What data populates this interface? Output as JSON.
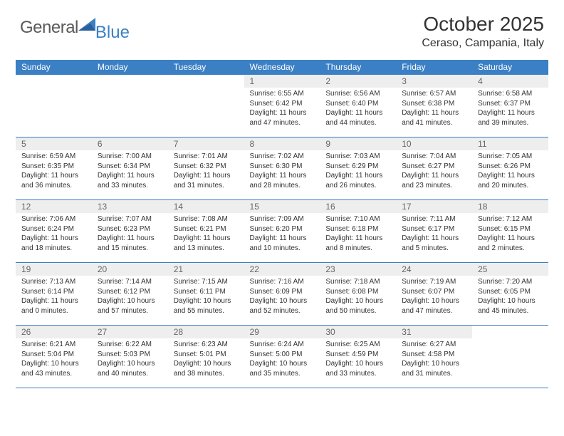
{
  "brand": {
    "word1": "General",
    "word2": "Blue"
  },
  "title": "October 2025",
  "location": "Ceraso, Campania, Italy",
  "colors": {
    "header_bg": "#3b7fc4",
    "header_text": "#ffffff",
    "daynum_bg": "#eeeeee",
    "daynum_text": "#666666",
    "body_text": "#333333",
    "rule": "#3b7fc4",
    "page_bg": "#ffffff",
    "logo_gray": "#5a5a5a",
    "logo_blue": "#3b7fc4"
  },
  "typography": {
    "title_size": 28,
    "location_size": 16,
    "dayname_size": 12,
    "daynum_size": 12,
    "cell_size": 10
  },
  "dayNames": [
    "Sunday",
    "Monday",
    "Tuesday",
    "Wednesday",
    "Thursday",
    "Friday",
    "Saturday"
  ],
  "layout": {
    "columns": 7,
    "rows": 5,
    "leading_blanks": 3
  },
  "days": [
    {
      "n": 1,
      "sunrise": "6:55 AM",
      "sunset": "6:42 PM",
      "daylight": "11 hours and 47 minutes."
    },
    {
      "n": 2,
      "sunrise": "6:56 AM",
      "sunset": "6:40 PM",
      "daylight": "11 hours and 44 minutes."
    },
    {
      "n": 3,
      "sunrise": "6:57 AM",
      "sunset": "6:38 PM",
      "daylight": "11 hours and 41 minutes."
    },
    {
      "n": 4,
      "sunrise": "6:58 AM",
      "sunset": "6:37 PM",
      "daylight": "11 hours and 39 minutes."
    },
    {
      "n": 5,
      "sunrise": "6:59 AM",
      "sunset": "6:35 PM",
      "daylight": "11 hours and 36 minutes."
    },
    {
      "n": 6,
      "sunrise": "7:00 AM",
      "sunset": "6:34 PM",
      "daylight": "11 hours and 33 minutes."
    },
    {
      "n": 7,
      "sunrise": "7:01 AM",
      "sunset": "6:32 PM",
      "daylight": "11 hours and 31 minutes."
    },
    {
      "n": 8,
      "sunrise": "7:02 AM",
      "sunset": "6:30 PM",
      "daylight": "11 hours and 28 minutes."
    },
    {
      "n": 9,
      "sunrise": "7:03 AM",
      "sunset": "6:29 PM",
      "daylight": "11 hours and 26 minutes."
    },
    {
      "n": 10,
      "sunrise": "7:04 AM",
      "sunset": "6:27 PM",
      "daylight": "11 hours and 23 minutes."
    },
    {
      "n": 11,
      "sunrise": "7:05 AM",
      "sunset": "6:26 PM",
      "daylight": "11 hours and 20 minutes."
    },
    {
      "n": 12,
      "sunrise": "7:06 AM",
      "sunset": "6:24 PM",
      "daylight": "11 hours and 18 minutes."
    },
    {
      "n": 13,
      "sunrise": "7:07 AM",
      "sunset": "6:23 PM",
      "daylight": "11 hours and 15 minutes."
    },
    {
      "n": 14,
      "sunrise": "7:08 AM",
      "sunset": "6:21 PM",
      "daylight": "11 hours and 13 minutes."
    },
    {
      "n": 15,
      "sunrise": "7:09 AM",
      "sunset": "6:20 PM",
      "daylight": "11 hours and 10 minutes."
    },
    {
      "n": 16,
      "sunrise": "7:10 AM",
      "sunset": "6:18 PM",
      "daylight": "11 hours and 8 minutes."
    },
    {
      "n": 17,
      "sunrise": "7:11 AM",
      "sunset": "6:17 PM",
      "daylight": "11 hours and 5 minutes."
    },
    {
      "n": 18,
      "sunrise": "7:12 AM",
      "sunset": "6:15 PM",
      "daylight": "11 hours and 2 minutes."
    },
    {
      "n": 19,
      "sunrise": "7:13 AM",
      "sunset": "6:14 PM",
      "daylight": "11 hours and 0 minutes."
    },
    {
      "n": 20,
      "sunrise": "7:14 AM",
      "sunset": "6:12 PM",
      "daylight": "10 hours and 57 minutes."
    },
    {
      "n": 21,
      "sunrise": "7:15 AM",
      "sunset": "6:11 PM",
      "daylight": "10 hours and 55 minutes."
    },
    {
      "n": 22,
      "sunrise": "7:16 AM",
      "sunset": "6:09 PM",
      "daylight": "10 hours and 52 minutes."
    },
    {
      "n": 23,
      "sunrise": "7:18 AM",
      "sunset": "6:08 PM",
      "daylight": "10 hours and 50 minutes."
    },
    {
      "n": 24,
      "sunrise": "7:19 AM",
      "sunset": "6:07 PM",
      "daylight": "10 hours and 47 minutes."
    },
    {
      "n": 25,
      "sunrise": "7:20 AM",
      "sunset": "6:05 PM",
      "daylight": "10 hours and 45 minutes."
    },
    {
      "n": 26,
      "sunrise": "6:21 AM",
      "sunset": "5:04 PM",
      "daylight": "10 hours and 43 minutes."
    },
    {
      "n": 27,
      "sunrise": "6:22 AM",
      "sunset": "5:03 PM",
      "daylight": "10 hours and 40 minutes."
    },
    {
      "n": 28,
      "sunrise": "6:23 AM",
      "sunset": "5:01 PM",
      "daylight": "10 hours and 38 minutes."
    },
    {
      "n": 29,
      "sunrise": "6:24 AM",
      "sunset": "5:00 PM",
      "daylight": "10 hours and 35 minutes."
    },
    {
      "n": 30,
      "sunrise": "6:25 AM",
      "sunset": "4:59 PM",
      "daylight": "10 hours and 33 minutes."
    },
    {
      "n": 31,
      "sunrise": "6:27 AM",
      "sunset": "4:58 PM",
      "daylight": "10 hours and 31 minutes."
    }
  ],
  "labels": {
    "sunrise": "Sunrise:",
    "sunset": "Sunset:",
    "daylight": "Daylight:"
  }
}
